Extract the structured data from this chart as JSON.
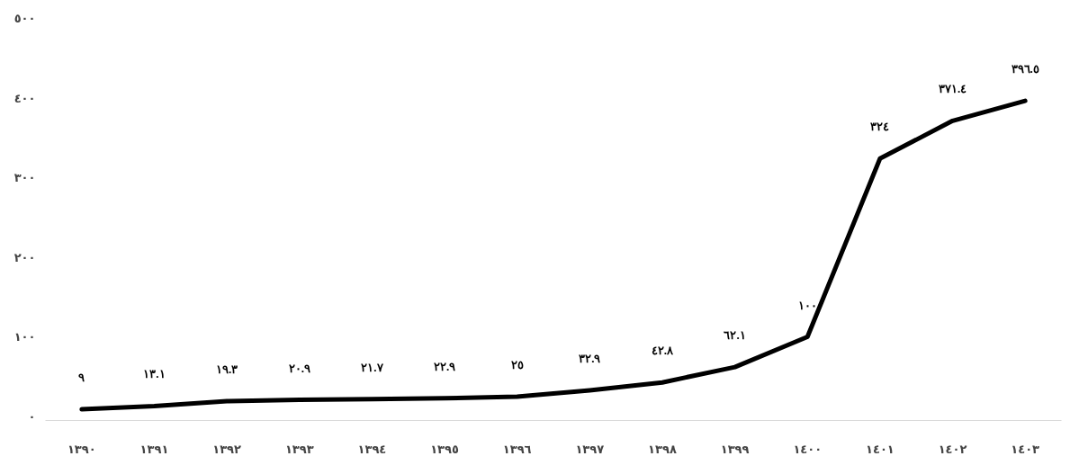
{
  "chart_data": {
    "type": "line",
    "categories": [
      "١٣٩٠",
      "١٣٩١",
      "١٣٩٢",
      "١٣٩٣",
      "١٣٩٤",
      "١٣٩٥",
      "١٣٩٦",
      "١٣٩٧",
      "١٣٩٨",
      "١٣٩٩",
      "١٤٠٠",
      "١٤٠١",
      "١٤٠٢",
      "١٤٠٣"
    ],
    "series": [
      {
        "color": "#000000",
        "values": [
          9,
          13.1,
          19.3,
          20.9,
          21.7,
          22.9,
          25,
          32.9,
          42.8,
          62.1,
          100,
          324,
          371.4,
          396.5
        ],
        "value_labels": [
          "٩",
          "١٣.١",
          "١٩.٣",
          "٢٠.٩",
          "٢١.٧",
          "٢٢.٩",
          "٢٥",
          "٣٢.٩",
          "٤٢.٨",
          "٦٢.١",
          "١٠٠",
          "٣٢٤",
          "٣٧١.٤",
          "٣٩٦.٥"
        ]
      }
    ],
    "ylim": [
      -5,
      500
    ],
    "yticks": [
      {
        "value": 0,
        "label": "٠"
      },
      {
        "value": 100,
        "label": "١٠٠"
      },
      {
        "value": 200,
        "label": "٢٠٠"
      },
      {
        "value": 300,
        "label": "٣٠٠"
      },
      {
        "value": 400,
        "label": "٤٠٠"
      },
      {
        "value": 500,
        "label": "٥٠٠"
      }
    ],
    "grid": false,
    "marker": "none",
    "line_style": "solid"
  }
}
